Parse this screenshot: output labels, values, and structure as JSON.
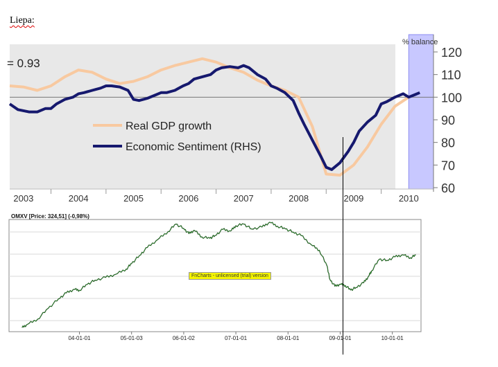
{
  "document": {
    "label": "Liepa:"
  },
  "chart_data": [
    {
      "type": "line",
      "title": "",
      "annotation": "= 0.93",
      "right_axis_title": "% balance",
      "xlabel": "",
      "ylabel": "",
      "ylim": [
        60,
        120
      ],
      "yticks": [
        60,
        70,
        80,
        90,
        100,
        110,
        120
      ],
      "x_tick_labels": [
        "2003",
        "2004",
        "2005",
        "2006",
        "2007",
        "2008",
        "2009",
        "2010"
      ],
      "xlim": [
        2002.75,
        2010.45
      ],
      "reference_line": 100,
      "shaded_region": [
        2010.0,
        2010.45
      ],
      "legend_position": "center-left",
      "grid": false,
      "series": [
        {
          "name": "Real GDP growth",
          "color": "#f8c9a0",
          "x": [
            2002.75,
            2003.0,
            2003.25,
            2003.5,
            2003.75,
            2004.0,
            2004.25,
            2004.5,
            2004.75,
            2005.0,
            2005.25,
            2005.5,
            2005.75,
            2006.0,
            2006.25,
            2006.5,
            2006.75,
            2007.0,
            2007.25,
            2007.5,
            2007.75,
            2008.0,
            2008.25,
            2008.5,
            2008.75,
            2009.0,
            2009.25,
            2009.5,
            2009.75,
            2010.0
          ],
          "values": [
            105,
            104.5,
            103,
            105,
            109,
            112,
            111,
            108,
            106,
            107,
            109,
            112,
            114,
            115.5,
            117,
            115.5,
            113,
            111,
            107.5,
            105,
            103,
            100,
            87,
            66,
            65.5,
            70,
            78,
            88,
            96,
            100
          ]
        },
        {
          "name": "Economic Sentiment (RHS)",
          "color": "#16196e",
          "x": [
            2002.75,
            2002.9,
            2003.0,
            2003.1,
            2003.25,
            2003.4,
            2003.5,
            2003.6,
            2003.75,
            2003.9,
            2004.0,
            2004.1,
            2004.25,
            2004.4,
            2004.5,
            2004.6,
            2004.75,
            2004.9,
            2005.0,
            2005.1,
            2005.25,
            2005.4,
            2005.5,
            2005.6,
            2005.75,
            2005.9,
            2006.0,
            2006.1,
            2006.25,
            2006.4,
            2006.5,
            2006.6,
            2006.75,
            2006.9,
            2007.0,
            2007.1,
            2007.25,
            2007.4,
            2007.5,
            2007.6,
            2007.75,
            2007.9,
            2008.0,
            2008.1,
            2008.25,
            2008.4,
            2008.5,
            2008.6,
            2008.75,
            2008.9,
            2009.0,
            2009.1,
            2009.25,
            2009.4,
            2009.5,
            2009.6,
            2009.75,
            2009.9,
            2010.0,
            2010.1,
            2010.2
          ],
          "values": [
            97,
            94.5,
            94,
            93.5,
            93.5,
            95,
            95,
            97,
            99,
            100,
            101.5,
            102,
            103,
            104,
            105,
            105,
            104.5,
            103,
            99,
            98.5,
            99.5,
            101,
            102,
            102,
            103,
            105,
            106,
            108,
            109,
            110,
            112,
            113,
            113.5,
            113,
            114,
            113,
            110,
            108,
            105,
            104,
            102,
            98.5,
            93,
            88,
            81,
            74,
            69,
            68,
            71,
            76,
            80,
            85,
            89,
            92,
            97,
            98,
            100,
            101.5,
            100,
            101,
            102
          ]
        }
      ]
    },
    {
      "type": "line",
      "title": "OMXV [Price: 324,51] (-0,98%)",
      "watermark": "FnCharts - unlicensed (trial) version",
      "x_tick_labels": [
        "04-01-01",
        "05-01-03",
        "06-01-02",
        "07-01-01",
        "08-01-01",
        "09-01-01",
        "10-01-01"
      ],
      "xlim": [
        2002.65,
        2010.55
      ],
      "ylim": [
        150,
        560
      ],
      "grid": true,
      "series": [
        {
          "name": "OMXV",
          "color": "#111111",
          "x": [
            2002.9,
            2003.0,
            2003.2,
            2003.4,
            2003.6,
            2003.75,
            2003.9,
            2004.0,
            2004.15,
            2004.3,
            2004.5,
            2004.7,
            2004.9,
            2005.0,
            2005.15,
            2005.3,
            2005.5,
            2005.7,
            2005.85,
            2006.0,
            2006.1,
            2006.2,
            2006.35,
            2006.5,
            2006.6,
            2006.75,
            2006.9,
            2007.0,
            2007.15,
            2007.3,
            2007.5,
            2007.65,
            2007.8,
            2007.95,
            2008.1,
            2008.25,
            2008.45,
            2008.6,
            2008.75,
            2008.8,
            2008.9,
            2009.0,
            2009.1,
            2009.2,
            2009.3,
            2009.45,
            2009.55,
            2009.6,
            2009.75,
            2009.9,
            2010.05,
            2010.2,
            2010.35,
            2010.45
          ],
          "values": [
            160,
            172,
            192,
            232,
            268,
            290,
            304,
            300,
            322,
            338,
            348,
            360,
            380,
            400,
            430,
            460,
            490,
            520,
            548,
            532,
            512,
            525,
            500,
            495,
            505,
            528,
            522,
            542,
            548,
            530,
            537,
            555,
            540,
            530,
            518,
            505,
            470,
            450,
            390,
            342,
            315,
            323,
            318,
            301,
            310,
            328,
            354,
            372,
            416,
            412,
            425,
            433,
            422,
            432
          ]
        }
      ]
    }
  ]
}
